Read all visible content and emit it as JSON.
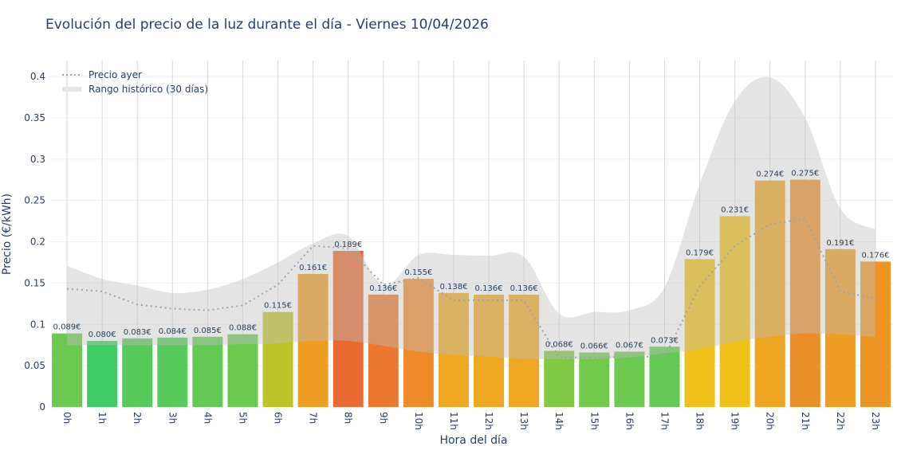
{
  "chart_data": {
    "type": "bar",
    "title": "Evolución del precio de la luz durante el día - Viernes 10/04/2026",
    "xlabel": "Hora del día",
    "ylabel": "Precio (€/kWh)",
    "ylim": [
      0,
      0.42
    ],
    "yticks": [
      "0",
      "0.05",
      "0.1",
      "0.15",
      "0.2",
      "0.25",
      "0.3",
      "0.35",
      "0.4"
    ],
    "grid": true,
    "legend_position": "top-left",
    "categories": [
      "0h",
      "1h",
      "2h",
      "3h",
      "4h",
      "5h",
      "6h",
      "7h",
      "8h",
      "9h",
      "10h",
      "11h",
      "12h",
      "13h",
      "14h",
      "15h",
      "16h",
      "17h",
      "18h",
      "19h",
      "20h",
      "21h",
      "22h",
      "23h"
    ],
    "values": [
      0.089,
      0.08,
      0.083,
      0.084,
      0.085,
      0.088,
      0.115,
      0.161,
      0.189,
      0.136,
      0.155,
      0.138,
      0.136,
      0.136,
      0.068,
      0.066,
      0.067,
      0.073,
      0.179,
      0.231,
      0.274,
      0.275,
      0.191,
      0.176
    ],
    "labels": [
      "0.089€",
      "0.080€",
      "0.083€",
      "0.084€",
      "0.085€",
      "0.088€",
      "0.115€",
      "0.161€",
      "0.189€",
      "0.136€",
      "0.155€",
      "0.138€",
      "0.136€",
      "0.136€",
      "0.068€",
      "0.066€",
      "0.067€",
      "0.073€",
      "0.179€",
      "0.231€",
      "0.274€",
      "0.275€",
      "0.191€",
      "0.176€"
    ],
    "bar_colors": [
      "#6cc94f",
      "#3fcb66",
      "#58c95c",
      "#58c95c",
      "#62c953",
      "#6cc94f",
      "#bcc42a",
      "#ee9c22",
      "#e96a30",
      "#ec772e",
      "#ee8a2a",
      "#eea822",
      "#eea822",
      "#eea822",
      "#7fc945",
      "#72c94b",
      "#6cc94f",
      "#62c953",
      "#f0c018",
      "#f0c018",
      "#eda420",
      "#ec8e26",
      "#ee9c22",
      "#ec9424"
    ],
    "series": [
      {
        "name": "Precio ayer",
        "type": "line",
        "style": "dotted",
        "color": "#9aa5a8",
        "values": [
          0.143,
          0.14,
          0.124,
          0.119,
          0.117,
          0.123,
          0.148,
          0.195,
          0.192,
          0.148,
          0.156,
          0.129,
          0.129,
          0.129,
          0.06,
          0.06,
          0.061,
          0.061,
          0.146,
          0.195,
          0.221,
          0.228,
          0.14,
          0.131
        ]
      },
      {
        "name": "Rango histórico (30 días)",
        "type": "band",
        "color": "#d9d9d9",
        "upper": [
          0.171,
          0.155,
          0.147,
          0.138,
          0.142,
          0.155,
          0.175,
          0.198,
          0.207,
          0.147,
          0.184,
          0.184,
          0.183,
          0.182,
          0.113,
          0.115,
          0.117,
          0.145,
          0.27,
          0.37,
          0.399,
          0.35,
          0.24,
          0.215
        ],
        "lower": [
          0.075,
          0.075,
          0.075,
          0.075,
          0.075,
          0.076,
          0.077,
          0.08,
          0.08,
          0.074,
          0.067,
          0.063,
          0.061,
          0.058,
          0.058,
          0.058,
          0.06,
          0.065,
          0.07,
          0.079,
          0.085,
          0.089,
          0.088,
          0.085
        ]
      }
    ]
  }
}
